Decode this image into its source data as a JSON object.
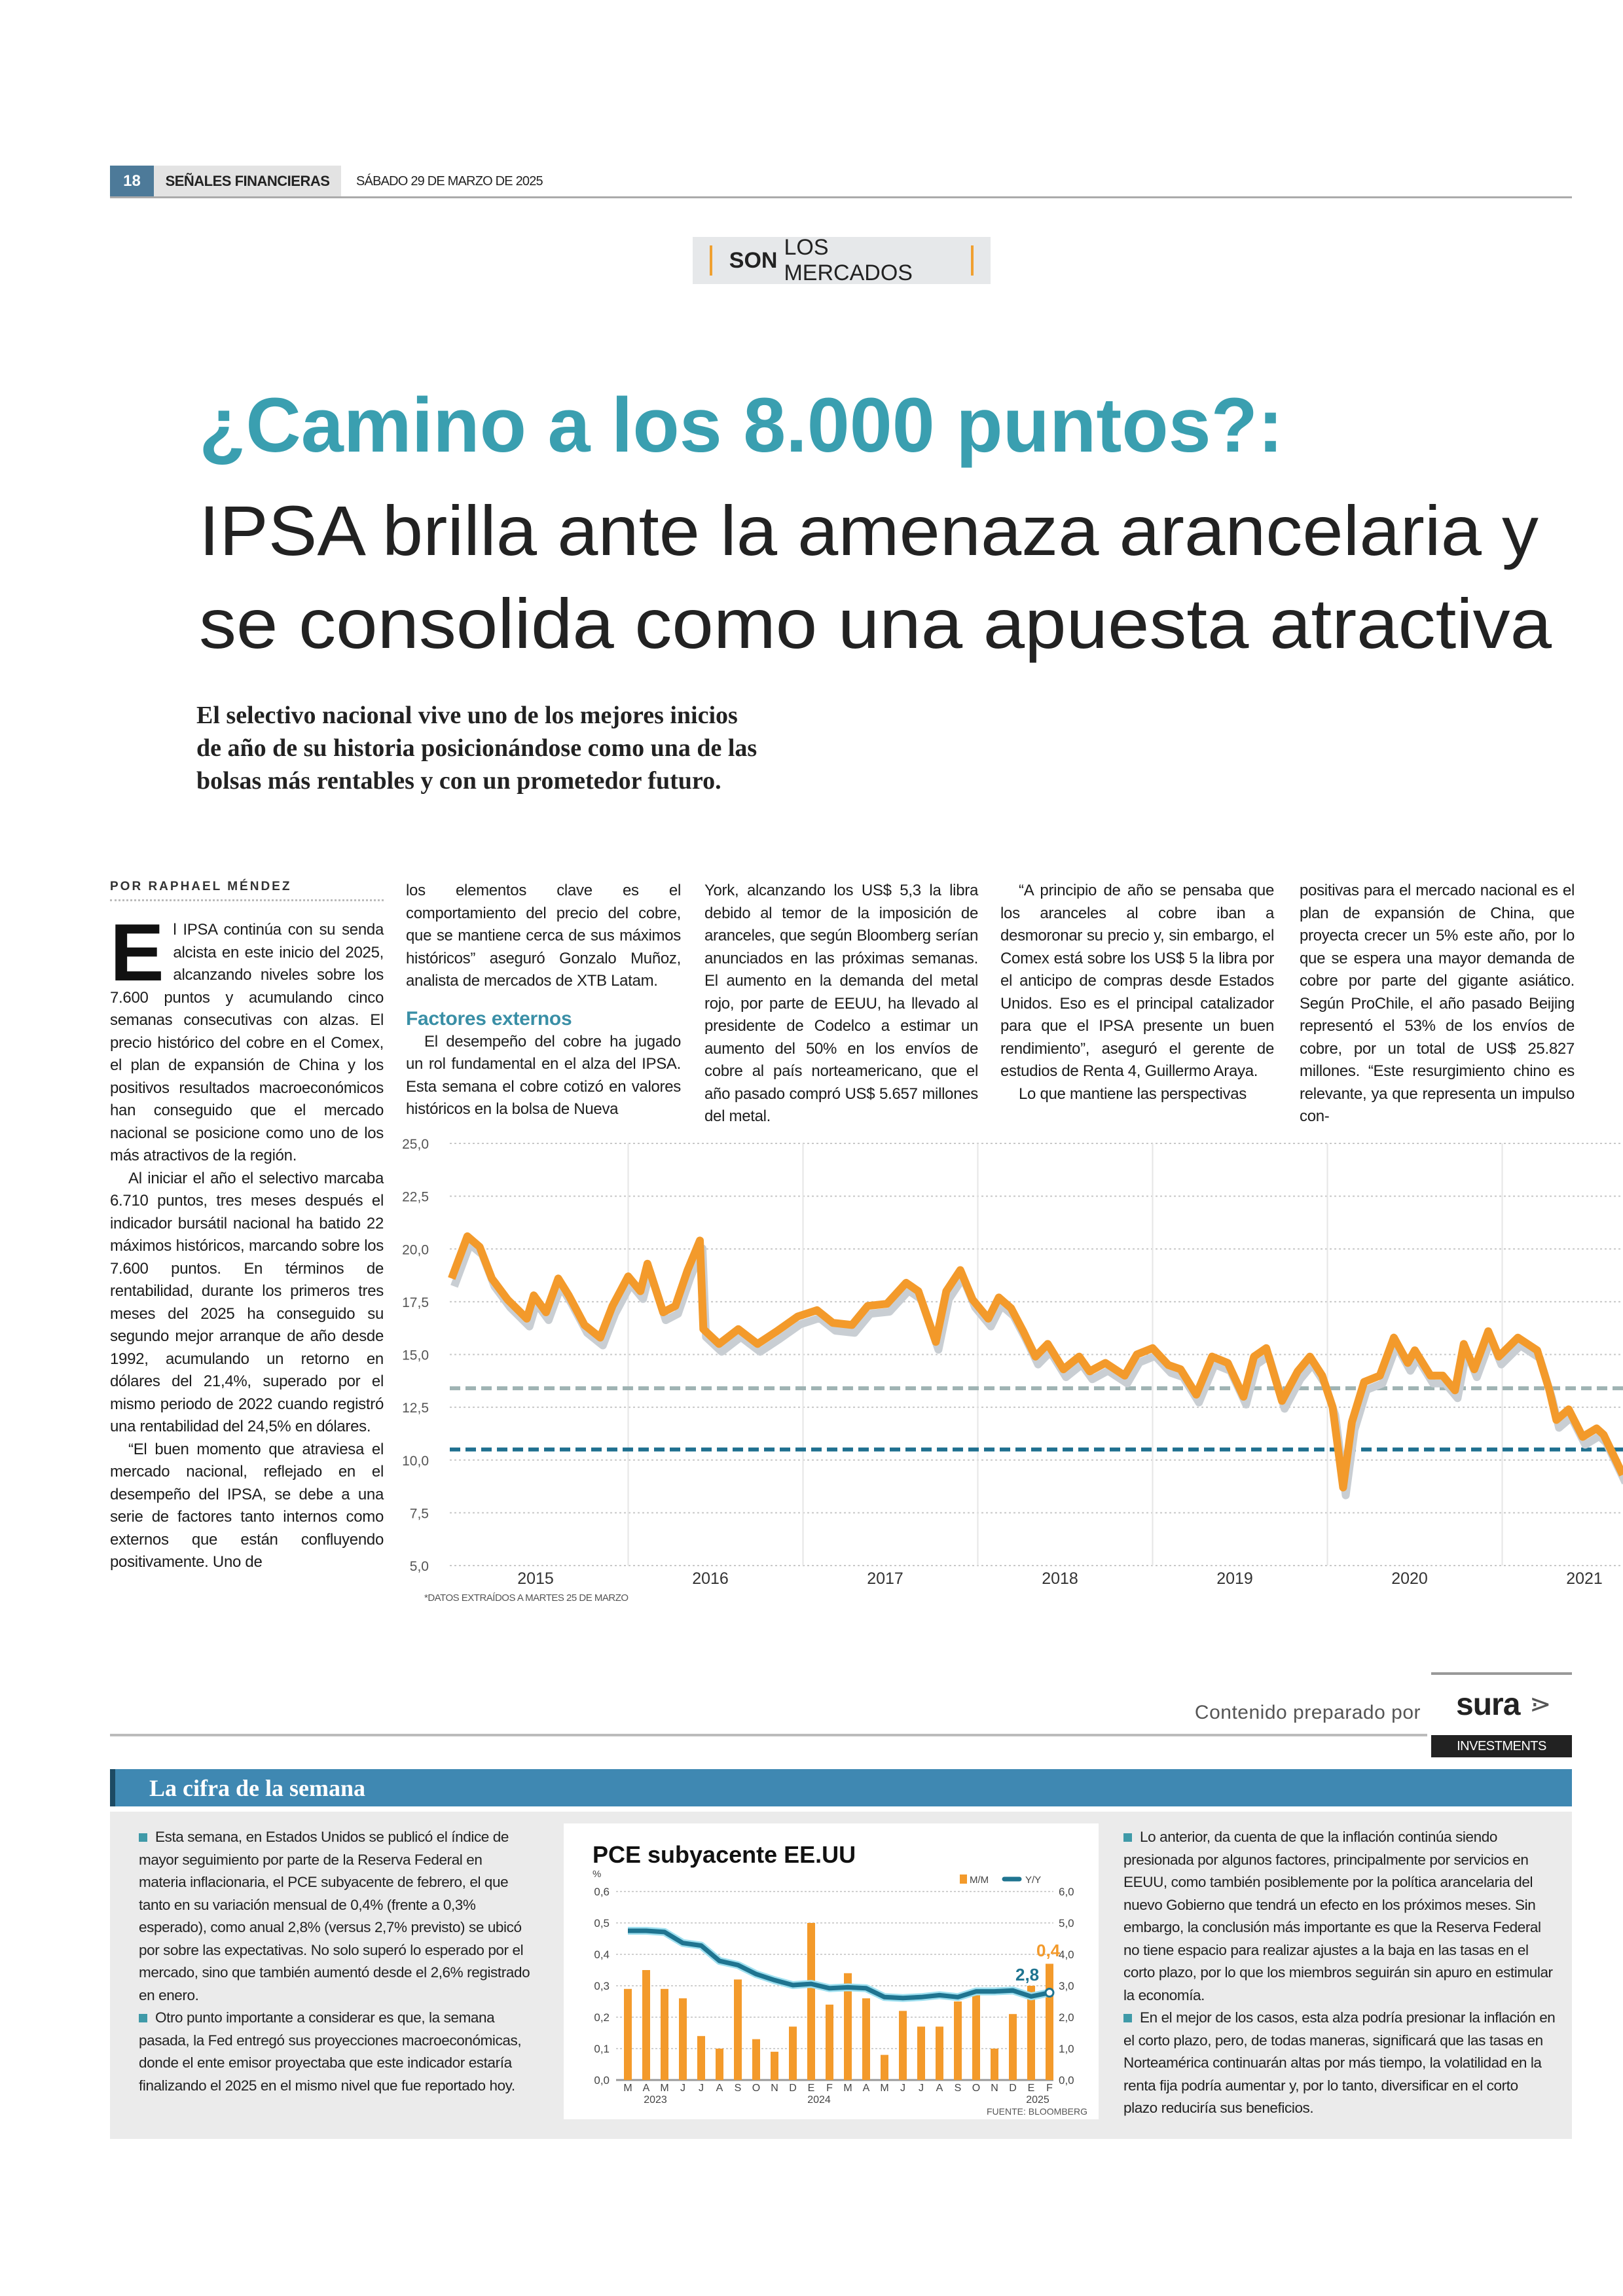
{
  "header": {
    "page_number": "18",
    "section": "SEÑALES FINANCIERAS",
    "date": "SÁBADO 29 DE MARZO DE 2025"
  },
  "tag": {
    "bold": "SON",
    "rest": "LOS MERCADOS"
  },
  "headline": {
    "line1": "¿Camino a los 8.000 puntos?:",
    "line2": "IPSA brilla ante la amenaza arancelaria  y",
    "line3": "se consolida como una apuesta atractiva",
    "color": "#3a9fb0"
  },
  "subhead": [
    "El selectivo nacional vive uno de los mejores inicios",
    "de año de su historia posicionándose como una de las",
    "bolsas más rentables y con un prometedor futuro."
  ],
  "byline": "POR RAPHAEL MÉNDEZ",
  "article": {
    "dropcap": "E",
    "col1": [
      "l IPSA continúa con su senda alcista en este inicio del 2025, alcanzando niveles sobre los 7.600 puntos y acumulando cinco semanas consecutivas con alzas. El precio histórico del cobre en el Comex, el plan de expansión de China y los positivos resultados macroeconómicos han conseguido que el mercado nacional se posicione como uno de los más atractivos de la región.",
      "Al iniciar el año el selectivo marcaba 6.710 puntos, tres meses después el indicador bursátil nacional ha batido 22 máximos históricos, marcando sobre los 7.600 puntos. En términos de rentabilidad, durante los primeros tres meses del 2025 ha conseguido su segundo mejor arranque de año desde 1992, acumulando un retorno en dólares del 21,4%, superado por el mismo periodo de 2022 cuando registró una rentabilidad del 24,5% en dólares.",
      "“El buen momento que atraviesa el mercado nacional, reflejado en el desempeño del IPSA, se debe a una serie de factores tanto internos como externos que están confluyendo positivamente. Uno de"
    ],
    "col2": [
      "los elementos clave es el comportamiento del precio del cobre, que se mantiene cerca de sus máximos históricos” aseguró Gonzalo Muñoz, analista de mercados de XTB Latam."
    ],
    "col2_heading": "Factores externos",
    "col2b": [
      "El desempeño del cobre ha jugado un rol fundamental en el alza del IPSA. Esta semana el cobre cotizó en valores históricos en la bolsa de Nueva"
    ],
    "col3": [
      "York, alcanzando los US$ 5,3 la libra debido al temor de la imposición de aranceles, que según Bloomberg serían anunciados en las próximas semanas. El aumento en la demanda del metal rojo, por parte de EEUU, ha llevado al presidente de Codelco a estimar un aumento del 50% en los envíos de cobre al país norteamericano, que el año pasado compró US$ 5.657 millones del metal."
    ],
    "col4": [
      "“A principio de año se pensaba que los aranceles al cobre iban a desmoronar su precio y, sin embargo, el Comex está sobre los US$ 5 la libra por el anticipo de compras desde Estados Unidos. Eso es el principal catalizador para que el IPSA presente un buen rendimiento”, aseguró el gerente de estudios de Renta 4, Guillermo Araya.",
      "Lo que mantiene las perspectivas"
    ],
    "col5": [
      "positivas para el mercado nacional es el plan de expansión de China, que proyecta crecer un 5% este año, por lo que se espera una mayor demanda de cobre por parte del gigante asiático. Según ProChile, el año pasado Beijing representó el 53% de los envíos de cobre, por un total de US$ 25.827 millones. “Este resurgimiento chino es relevante, ya que representa un impulso con-"
    ]
  },
  "chart_data": [
    {
      "type": "line",
      "title": "",
      "xlabel": "",
      "ylabel": "",
      "ylim": [
        5.0,
        25.0
      ],
      "yticks": [
        "5,0",
        "7,5",
        "10,0",
        "12,5",
        "15,0",
        "17,5",
        "20,0",
        "22,5",
        "25,0"
      ],
      "xticks": [
        "2015",
        "2016",
        "2017",
        "2018",
        "2019",
        "2020",
        "2021"
      ],
      "grid": true,
      "colors": {
        "line": "#f39a2b",
        "shadow": "#c9ced3",
        "ref_gray": "#9fb3b3",
        "ref_blue": "#1e6f8f"
      },
      "reference_lines": [
        13.4,
        10.5
      ],
      "x": [
        2014.52,
        2014.61,
        2014.68,
        2014.75,
        2014.84,
        2014.95,
        2014.99,
        2015.06,
        2015.13,
        2015.19,
        2015.28,
        2015.37,
        2015.44,
        2015.53,
        2015.6,
        2015.64,
        2015.73,
        2015.8,
        2015.87,
        2015.94,
        2015.96,
        2016.05,
        2016.16,
        2016.27,
        2016.38,
        2016.5,
        2016.61,
        2016.7,
        2016.81,
        2016.9,
        2017.01,
        2017.12,
        2017.19,
        2017.29,
        2017.35,
        2017.43,
        2017.5,
        2017.59,
        2017.65,
        2017.72,
        2017.79,
        2017.86,
        2017.93,
        2018.02,
        2018.11,
        2018.17,
        2018.26,
        2018.37,
        2018.44,
        2018.53,
        2018.62,
        2018.69,
        2018.78,
        2018.87,
        2018.96,
        2019.05,
        2019.11,
        2019.18,
        2019.27,
        2019.36,
        2019.43,
        2019.5,
        2019.56,
        2019.62,
        2019.67,
        2019.74,
        2019.83,
        2019.91,
        2019.99,
        2020.03,
        2020.12,
        2020.19,
        2020.26,
        2020.31,
        2020.37,
        2020.45,
        2020.51,
        2020.62,
        2020.73,
        2020.8,
        2020.84,
        2020.91,
        2020.99,
        2021.07,
        2021.11,
        2021.22
      ],
      "values": [
        18.6,
        20.6,
        20.1,
        18.6,
        17.6,
        16.7,
        17.8,
        17.0,
        18.6,
        17.8,
        16.4,
        15.8,
        17.3,
        18.7,
        18.0,
        19.3,
        17.0,
        17.3,
        19.0,
        20.4,
        16.2,
        15.5,
        16.2,
        15.5,
        16.1,
        16.8,
        17.1,
        16.5,
        16.4,
        17.3,
        17.4,
        18.4,
        18.0,
        15.6,
        18.0,
        19.0,
        17.6,
        16.7,
        17.7,
        17.2,
        16.1,
        14.9,
        15.5,
        14.3,
        14.9,
        14.2,
        14.6,
        14.0,
        15.0,
        15.3,
        14.5,
        14.3,
        13.1,
        14.9,
        14.6,
        13.0,
        14.9,
        15.3,
        12.8,
        14.2,
        14.9,
        14.0,
        12.5,
        8.7,
        11.8,
        13.7,
        14.0,
        15.8,
        14.6,
        15.2,
        14.0,
        14.0,
        13.3,
        15.5,
        14.3,
        16.1,
        14.9,
        15.8,
        15.2,
        13.3,
        11.9,
        12.4,
        11.1,
        11.5,
        11.2,
        9.3
      ],
      "footnote": "*DATOS EXTRAÍDOS A MARTES 25 DE MARZO"
    },
    {
      "type": "bar+line",
      "title": "PCE subyacente EE.UU",
      "ylabel": "%",
      "ylim_left": [
        0.0,
        0.6
      ],
      "ylim_right": [
        0.0,
        6.0
      ],
      "yticks_left": [
        "0,0",
        "0,1",
        "0,2",
        "0,3",
        "0,4",
        "0,5",
        "0,6"
      ],
      "yticks_right": [
        "0,0",
        "1,0",
        "2,0",
        "3,0",
        "4,0",
        "5,0",
        "6,0"
      ],
      "categories": [
        "M",
        "A",
        "M",
        "J",
        "J",
        "A",
        "S",
        "O",
        "N",
        "D",
        "E",
        "F",
        "M",
        "A",
        "M",
        "J",
        "J",
        "A",
        "S",
        "O",
        "N",
        "D",
        "E",
        "F"
      ],
      "years": [
        "2023",
        "2024",
        "2025"
      ],
      "series": [
        {
          "name": "M/M",
          "color": "#f39a2b",
          "values": [
            0.29,
            0.35,
            0.29,
            0.26,
            0.14,
            0.1,
            0.32,
            0.13,
            0.09,
            0.17,
            0.5,
            0.24,
            0.34,
            0.26,
            0.08,
            0.22,
            0.17,
            0.17,
            0.25,
            0.27,
            0.1,
            0.21,
            0.3,
            0.37
          ]
        },
        {
          "name": "Y/Y",
          "color": "#1f7490",
          "values": [
            4.75,
            4.75,
            4.71,
            4.36,
            4.28,
            3.79,
            3.66,
            3.37,
            3.18,
            3.02,
            3.06,
            2.92,
            2.95,
            2.92,
            2.64,
            2.61,
            2.64,
            2.7,
            2.64,
            2.82,
            2.82,
            2.85,
            2.66,
            2.78
          ]
        }
      ],
      "annotations": {
        "mm_last": "0,4",
        "yy_last": "2,8"
      },
      "source": "FUENTE: BLOOMBERG"
    }
  ],
  "sponsor": {
    "label": "Contenido preparado por",
    "logo": "sura",
    "logo_sub": "INVESTMENTS"
  },
  "cifra": {
    "heading": "La cifra de la semana",
    "left": [
      "Esta semana, en Estados Unidos se publicó el índice de mayor seguimiento por parte de la Reserva Federal en materia inflacionaria, el PCE subyacente de febrero, el que tanto en su variación mensual de 0,4% (frente a 0,3% esperado), como anual 2,8% (versus 2,7% previsto) se ubicó por sobre las expectativas. No solo superó lo esperado por el mercado, sino que también aumentó desde el 2,6% registrado en enero.",
      "Otro punto importante a considerar es que, la semana pasada, la Fed entregó sus proyecciones macroeconómicas, donde el ente emisor proyectaba que este indicador estaría finalizando el 2025 en el mismo nivel que fue reportado hoy."
    ],
    "right": [
      "Lo anterior, da cuenta de que la inflación continúa siendo presionada por algunos factores, principalmente por servicios en EEUU, como también posiblemente por la política arancelaria del nuevo Gobierno que tendrá un efecto en los próximos meses. Sin embargo, la conclusión más importante es que la Reserva Federal no tiene espacio para realizar ajustes a la baja en las tasas en el corto plazo, por lo que los miembros seguirán sin apuro en estimular la economía.",
      "En el mejor de los casos, esta alza podría presionar la inflación en el corto plazo, pero, de todas maneras, significará que las tasas en Norteamérica continuarán altas por más tiempo, la volatilidad en la renta fija podría aumentar y, por lo tanto, diversificar en el corto plazo reduciría sus beneficios."
    ]
  }
}
